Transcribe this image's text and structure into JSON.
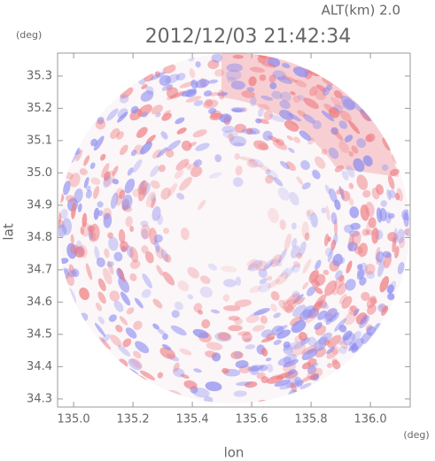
{
  "chart_data": {
    "type": "radar-map",
    "title": "2012/12/03 21:42:34",
    "annotation": "ALT(km) 2.0",
    "xlabel": "lon",
    "ylabel": "lat",
    "x_unit": "(deg)",
    "y_unit": "(deg)",
    "xlim": [
      134.946,
      136.134
    ],
    "ylim": [
      34.275,
      35.371
    ],
    "xticks": [
      {
        "value": 135.0,
        "label": "135.0"
      },
      135.2,
      135.4,
      135.6,
      135.8,
      {
        "value": 136.0,
        "label": "136.0"
      }
    ],
    "yticks": [
      34.3,
      34.4,
      34.5,
      34.6,
      34.7,
      34.8,
      34.9,
      {
        "value": 35.0,
        "label": "35.0"
      },
      35.1,
      35.2,
      35.3
    ]
  }
}
